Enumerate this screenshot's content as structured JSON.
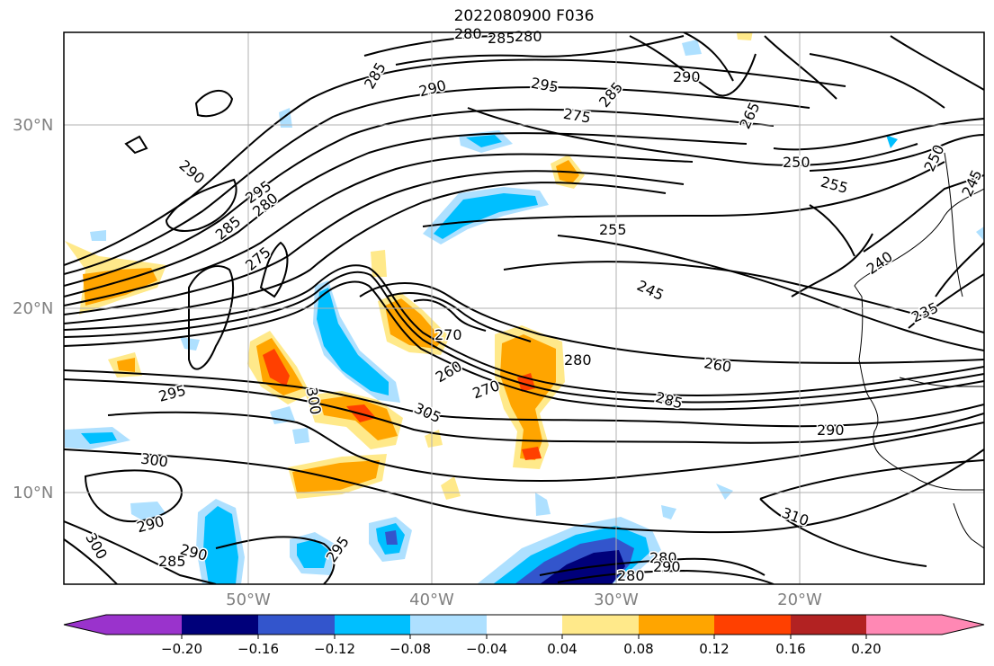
{
  "title": "2022080900 F036",
  "colors": {
    "frame": "#000000",
    "grid": "#b0b0b0",
    "tick_label": "#808080",
    "contour": "#000000",
    "coast": "#000000"
  },
  "lat_labels": [
    "30°N",
    "20°N",
    "10°N"
  ],
  "lon_labels": [
    "50°W",
    "40°W",
    "30°W",
    "20°W"
  ],
  "contour_labels": [
    "280",
    "285",
    "280",
    "285",
    "290",
    "295",
    "285",
    "290",
    "265",
    "275",
    "250",
    "255",
    "250",
    "245",
    "290",
    "295",
    "280",
    "255",
    "240",
    "285",
    "275",
    "245",
    "235",
    "270",
    "260",
    "270",
    "280",
    "260",
    "295",
    "300",
    "305",
    "285",
    "290",
    "300",
    "310",
    "290",
    "300",
    "285",
    "290",
    "295",
    "280",
    "290",
    "280"
  ],
  "colorbar": {
    "tick_labels": [
      "−0.20",
      "−0.16",
      "−0.12",
      "−0.08",
      "−0.04",
      "0.04",
      "0.08",
      "0.12",
      "0.16",
      "0.20"
    ],
    "colors": [
      "#9a33cc",
      "#00007a",
      "#3355cc",
      "#00bfff",
      "#aee0ff",
      "#ffffff",
      "#ffe98a",
      "#ffa500",
      "#ff4000",
      "#b22222",
      "#ff88b4"
    ]
  }
}
